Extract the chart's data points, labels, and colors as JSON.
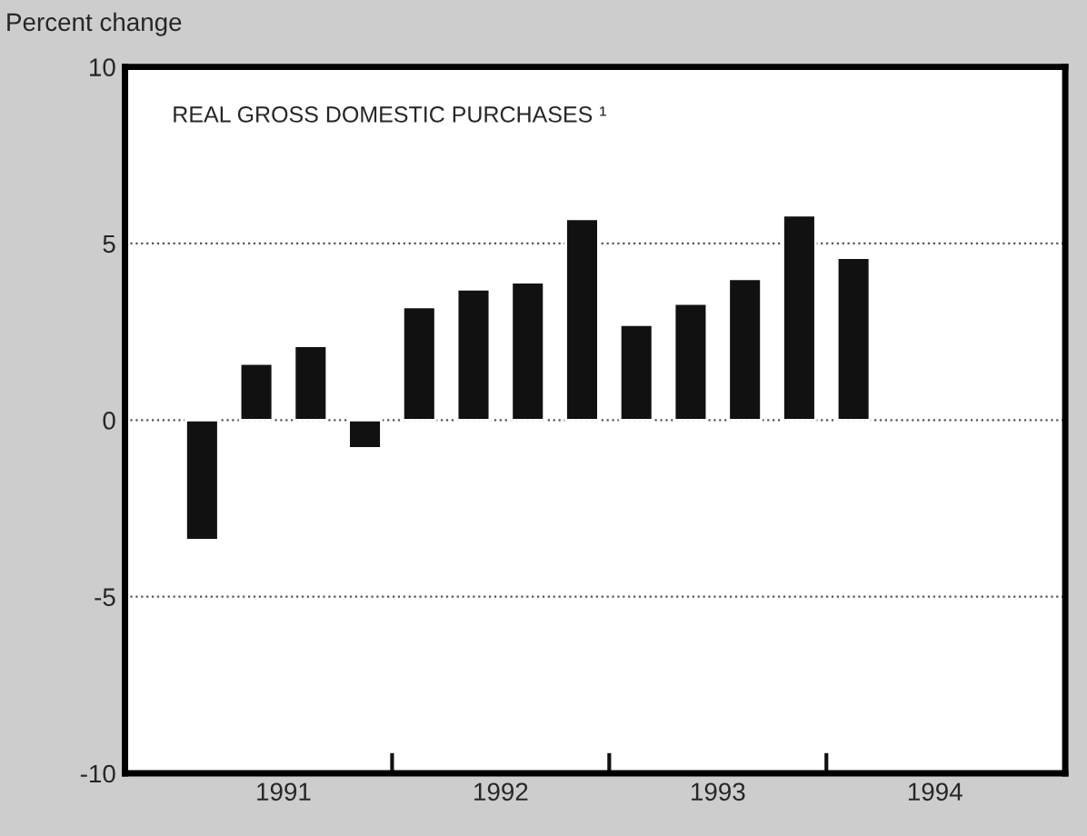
{
  "chart_data": {
    "type": "bar",
    "title": "REAL GROSS DOMESTIC PURCHASES ¹",
    "ylabel": "Percent change",
    "x": [
      1991.125,
      1991.375,
      1991.625,
      1991.875,
      1992.125,
      1992.375,
      1992.625,
      1992.875,
      1993.125,
      1993.375,
      1993.625,
      1993.875,
      1994.125
    ],
    "series": [
      {
        "color": "#111111",
        "values": [
          -3.4,
          1.6,
          2.1,
          -0.8,
          3.2,
          3.7,
          3.9,
          5.7,
          2.7,
          3.3,
          4.0,
          5.8,
          4.6
        ]
      }
    ],
    "xlim": [
      1990.77,
      1995.1
    ],
    "xticks": [
      {
        "value": 1991.5,
        "label": "1991"
      },
      {
        "value": 1992,
        "label": null
      },
      {
        "value": 1992.5,
        "label": "1992"
      },
      {
        "value": 1993,
        "label": null
      },
      {
        "value": 1993.5,
        "label": "1993"
      },
      {
        "value": 1994,
        "label": null
      },
      {
        "value": 1994.5,
        "label": "1994"
      }
    ],
    "ylim": [
      -10,
      10
    ],
    "yticks": [
      10,
      5,
      0,
      -5,
      -10
    ],
    "grid": "y",
    "line_style": "dotted",
    "legend": false
  }
}
